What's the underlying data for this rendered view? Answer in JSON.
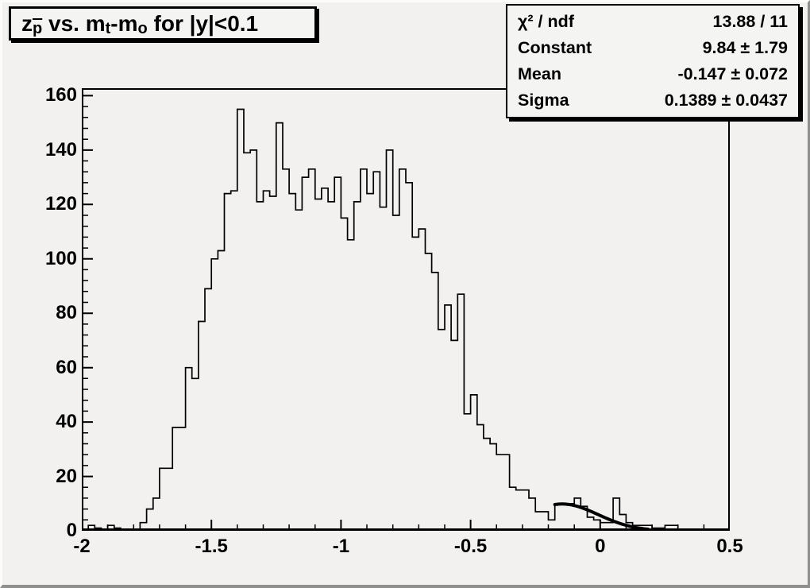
{
  "title": {
    "parts": [
      "z",
      "p",
      " vs. m",
      "t",
      "-m",
      "o",
      " for |y|<0.1"
    ],
    "plain": "z_p̄ vs. m_t-m_o for |y|<0.1"
  },
  "stats_box": {
    "rows": [
      {
        "label": "χ² / ndf",
        "value": "13.88 / 11"
      },
      {
        "label": "Constant",
        "value": "9.84 ± 1.79"
      },
      {
        "label": "Mean",
        "value": "-0.147 ± 0.072"
      },
      {
        "label": "Sigma",
        "value": "0.1389 ± 0.0437"
      }
    ]
  },
  "chart_data": {
    "type": "bar",
    "subtype": "step-histogram",
    "title": "z_p̄ vs. m_t-m_o for |y|<0.1",
    "xlabel": "",
    "ylabel": "",
    "xlim": [
      -2.0,
      0.5
    ],
    "ylim": [
      0,
      162.75
    ],
    "grid": false,
    "hist_color": "#000000",
    "bin_start": -2.0,
    "bin_width": 0.025,
    "values": [
      0,
      2,
      1,
      0,
      2,
      1,
      0,
      0,
      0,
      3,
      8,
      12,
      23,
      23,
      38,
      38,
      60,
      56,
      77,
      89,
      100,
      103,
      124,
      125,
      155,
      139,
      140,
      121,
      125,
      123,
      150,
      133,
      124,
      118,
      130,
      133,
      122,
      126,
      121,
      130,
      115,
      107,
      121,
      133,
      124,
      132,
      119,
      140,
      116,
      133,
      128,
      108,
      111,
      102,
      95,
      74,
      83,
      70,
      87,
      43,
      50,
      39,
      34,
      32,
      28,
      28,
      16,
      15,
      15,
      12,
      7,
      7,
      4,
      10,
      10,
      10,
      12,
      9,
      5,
      4,
      3,
      3,
      12,
      6,
      3,
      2,
      2,
      2,
      1,
      1,
      2,
      2,
      0,
      0,
      0,
      0,
      0,
      0,
      0,
      0
    ],
    "x_ticks": {
      "major": [
        -2,
        -1.5,
        -1,
        -0.5,
        0,
        0.5
      ],
      "labels": [
        "-2",
        "-1.5",
        "-1",
        "-0.5",
        "0",
        "0.5"
      ],
      "minor_step": 0.1
    },
    "y_ticks": {
      "major": [
        0,
        20,
        40,
        60,
        80,
        100,
        120,
        140,
        160
      ],
      "labels": [
        "0",
        "20",
        "40",
        "60",
        "80",
        "100",
        "120",
        "140",
        "160"
      ],
      "minor_step": 4
    },
    "fit": {
      "type": "gaussian",
      "constant": 9.84,
      "mean": -0.147,
      "sigma": 0.1389,
      "chi2": 13.88,
      "ndf": 11,
      "draw_range": [
        -0.175,
        0.185
      ],
      "color": "#000000",
      "line_width": 4
    }
  }
}
